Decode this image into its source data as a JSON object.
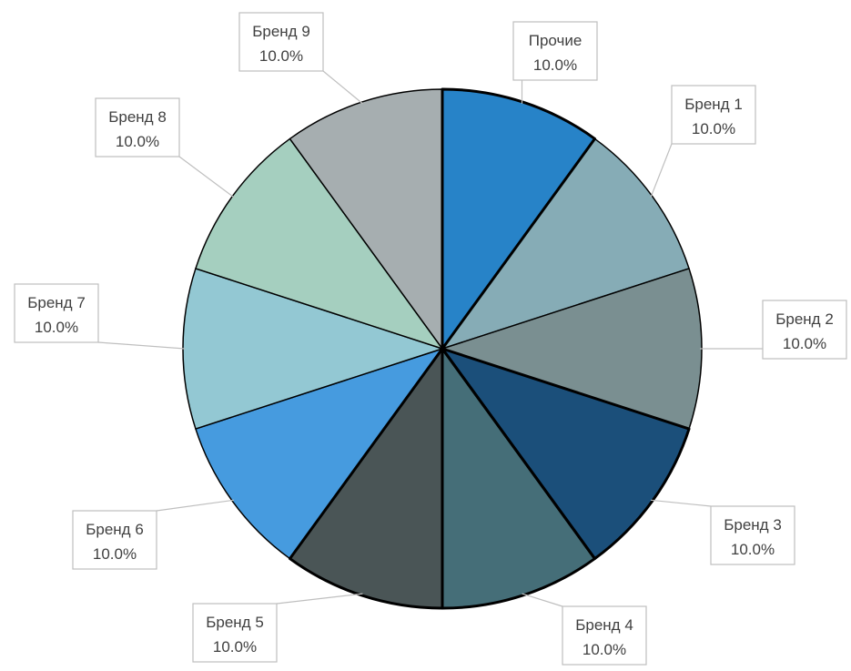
{
  "chart_data": {
    "type": "pie",
    "title": "",
    "start_angle_deg": 0,
    "direction": "clockwise",
    "slices": [
      {
        "label": "Прочие",
        "value": 10.0,
        "pct_label": "10.0%",
        "color": "#2783C8",
        "bold_edge": true
      },
      {
        "label": "Бренд 1",
        "value": 10.0,
        "pct_label": "10.0%",
        "color": "#86ACB6",
        "bold_edge": false
      },
      {
        "label": "Бренд 2",
        "value": 10.0,
        "pct_label": "10.0%",
        "color": "#7A8F91",
        "bold_edge": false
      },
      {
        "label": "Бренд 3",
        "value": 10.0,
        "pct_label": "10.0%",
        "color": "#1B4F7A",
        "bold_edge": true
      },
      {
        "label": "Бренд 4",
        "value": 10.0,
        "pct_label": "10.0%",
        "color": "#456E78",
        "bold_edge": true
      },
      {
        "label": "Бренд 5",
        "value": 10.0,
        "pct_label": "10.0%",
        "color": "#4A5556",
        "bold_edge": true
      },
      {
        "label": "Бренд 6",
        "value": 10.0,
        "pct_label": "10.0%",
        "color": "#469BDF",
        "bold_edge": false
      },
      {
        "label": "Бренд 7",
        "value": 10.0,
        "pct_label": "10.0%",
        "color": "#93C8D3",
        "bold_edge": false
      },
      {
        "label": "Бренд 8",
        "value": 10.0,
        "pct_label": "10.0%",
        "color": "#A5CFBF",
        "bold_edge": false
      },
      {
        "label": "Бренд 9",
        "value": 10.0,
        "pct_label": "10.0%",
        "color": "#A6AEB0",
        "bold_edge": false
      }
    ],
    "data_labels": "callout boxes with leader lines",
    "legend": "none"
  }
}
